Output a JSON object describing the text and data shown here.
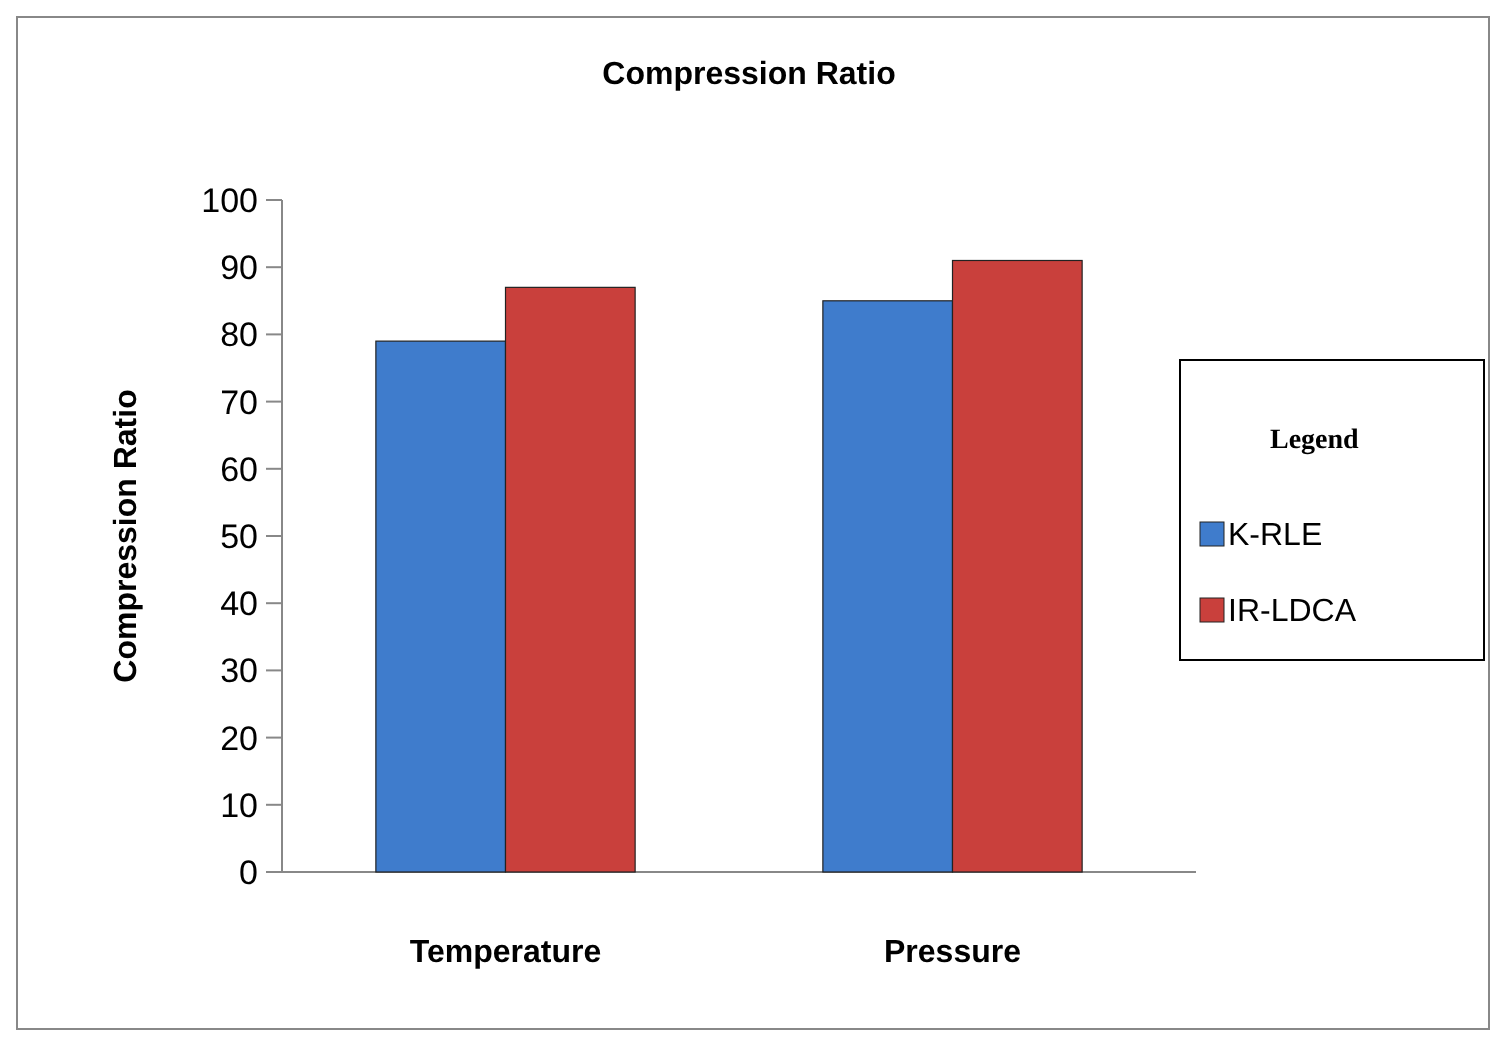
{
  "chart_data": {
    "type": "bar",
    "title": "Compression Ratio",
    "ylabel": "Compression Ratio",
    "legend_title": "Legend",
    "categories": [
      "Temperature",
      "Pressure"
    ],
    "series": [
      {
        "name": "K-RLE",
        "color": "#3f7ccc",
        "values": [
          79,
          85
        ]
      },
      {
        "name": "IR-LDCA",
        "color": "#c9403c",
        "values": [
          87,
          91
        ]
      }
    ],
    "ylim": [
      0,
      100
    ],
    "yticks": [
      0,
      10,
      20,
      30,
      40,
      50,
      60,
      70,
      80,
      90,
      100
    ],
    "grid": false,
    "legend": "right"
  }
}
